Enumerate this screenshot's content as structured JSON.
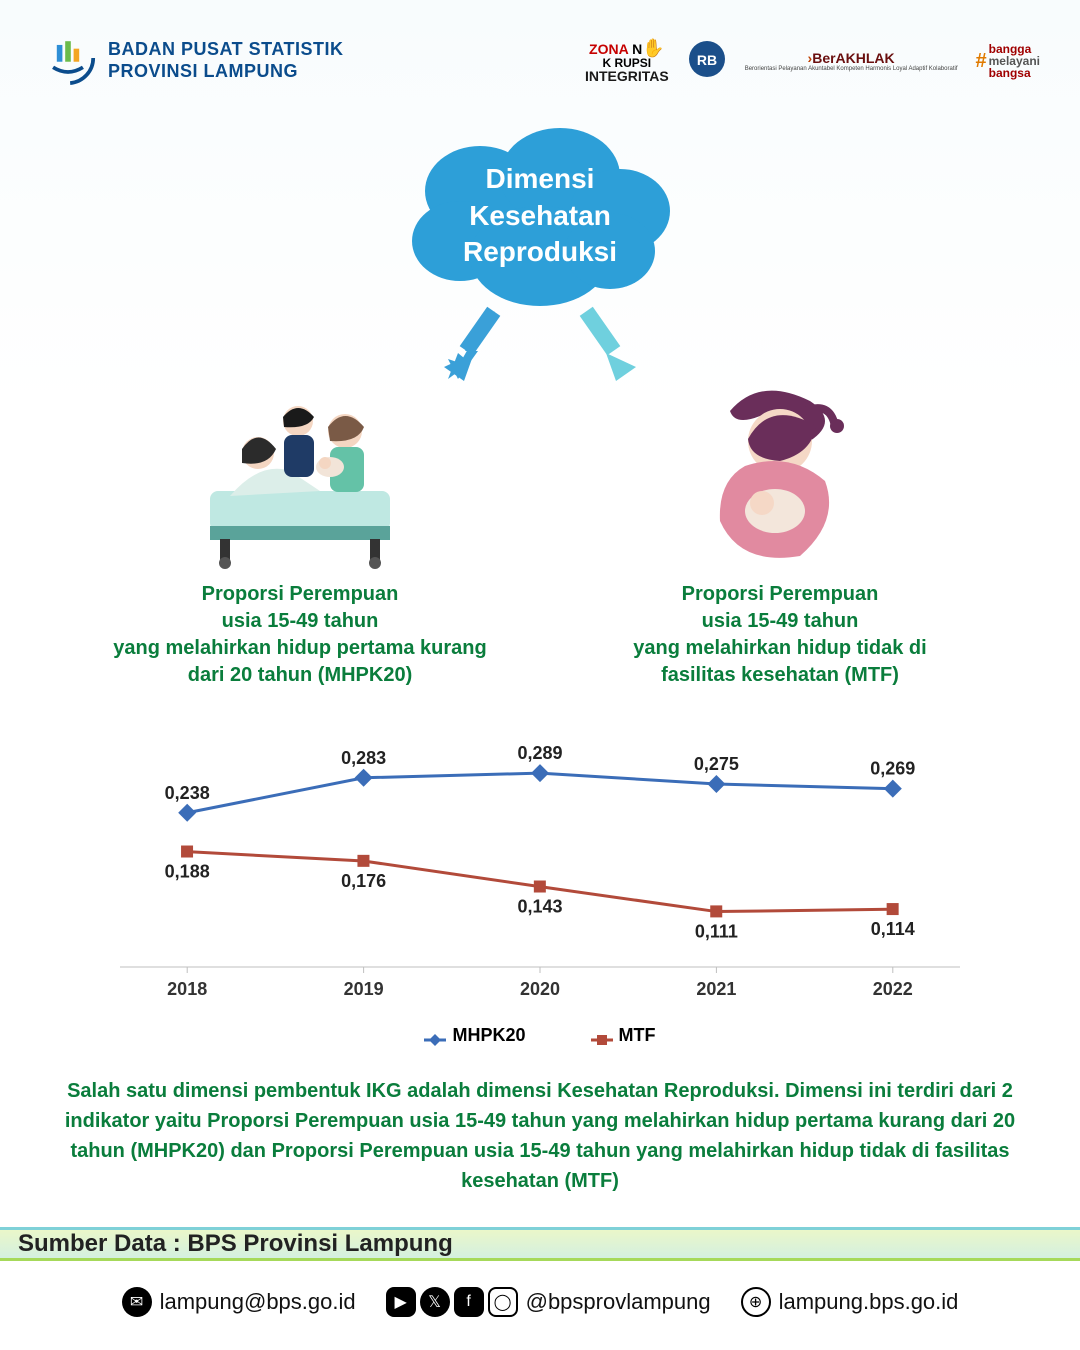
{
  "header": {
    "org_line1": "BADAN PUSAT STATISTIK",
    "org_line2": "PROVINSI LAMPUNG",
    "org_color": "#0b4c8c",
    "badges": {
      "zona_top": "ZONA",
      "zona_mid": "K   RUPSI",
      "zona_bottom": "INTEGRITAS",
      "berakhlak": "BerAKHLAK",
      "berakhlak_sub": "Berorientasi Pelayanan Akuntabel Kompeten Harmonis Loyal Adaptif Kolaboratif",
      "bangga_l1": "bangga",
      "bangga_l2": "melayani",
      "bangga_l3": "bangsa"
    }
  },
  "cloud": {
    "line1": "Dimensi",
    "line2": "Kesehatan",
    "line3": "Reproduksi",
    "fill": "#2d9fd8",
    "text_color": "#ffffff",
    "fontsize": 28
  },
  "arrows": {
    "left_color": "#3aa0d8",
    "right_color": "#6fd0de"
  },
  "indicators": {
    "left": "Proporsi Perempuan\nusia 15-49 tahun\nyang melahirkan hidup pertama kurang\ndari 20 tahun (MHPK20)",
    "right": "Proporsi Perempuan\nusia 15-49 tahun\nyang melahirkan hidup tidak di\nfasilitas kesehatan (MTF)",
    "color": "#0a7d3c",
    "fontsize": 20
  },
  "chart": {
    "type": "line",
    "categories": [
      "2018",
      "2019",
      "2020",
      "2021",
      "2022"
    ],
    "series": [
      {
        "name": "MHPK20",
        "values": [
          0.238,
          0.283,
          0.289,
          0.275,
          0.269
        ],
        "labels": [
          "0,238",
          "0,283",
          "0,289",
          "0,275",
          "0,269"
        ],
        "label_pos": [
          "above",
          "above",
          "above",
          "above",
          "above"
        ],
        "color": "#3b6db8",
        "marker": "diamond",
        "marker_size": 9,
        "line_width": 3
      },
      {
        "name": "MTF",
        "values": [
          0.188,
          0.176,
          0.143,
          0.111,
          0.114
        ],
        "labels": [
          "0,188",
          "0,176",
          "0,143",
          "0,111",
          "0,114"
        ],
        "label_pos": [
          "below",
          "below",
          "below",
          "below",
          "below"
        ],
        "color": "#b24a3a",
        "marker": "square",
        "marker_size": 8,
        "line_width": 3
      }
    ],
    "ylim": [
      0.05,
      0.32
    ],
    "plot_bg": "#ffffff",
    "axis_color": "#bfbfbf",
    "tick_color": "#bfbfbf",
    "label_fontsize": 18,
    "datalabel_fontsize": 18,
    "datalabel_weight": 700,
    "xlabel_fontsize": 18,
    "legend_fontsize": 18
  },
  "legend": {
    "s1": "MHPK20",
    "s2": "MTF"
  },
  "description": "Salah satu dimensi pembentuk IKG adalah dimensi Kesehatan Reproduksi. Dimensi ini terdiri dari 2 indikator yaitu Proporsi Perempuan usia 15-49 tahun yang melahirkan hidup pertama kurang dari 20 tahun (MHPK20) dan Proporsi Perempuan usia 15-49 tahun yang melahirkan hidup tidak di fasilitas kesehatan (MTF)",
  "source_label": "Sumber Data : BPS Provinsi Lampung",
  "footer": {
    "email": "lampung@bps.go.id",
    "social": "@bpsprovlampung",
    "web": "lampung.bps.go.id"
  }
}
